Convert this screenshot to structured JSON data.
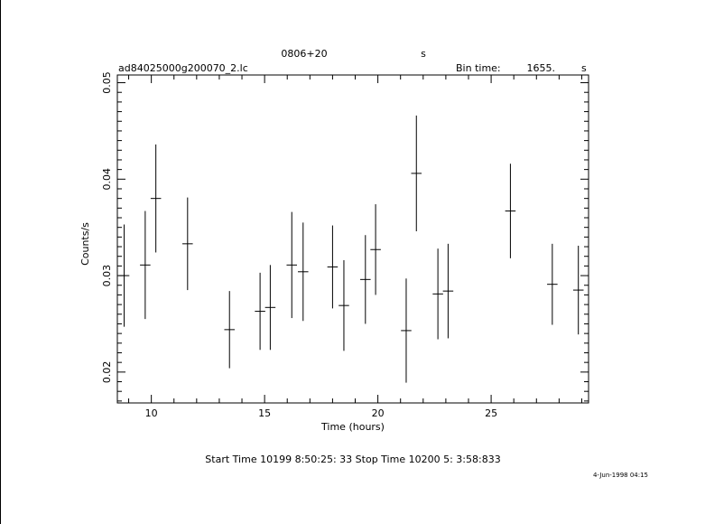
{
  "header": {
    "source": "0806+20",
    "unit_top": "s",
    "file": "ad84025000g200070_2.lc",
    "bin_label": "Bin time:",
    "bin_value": "1655.",
    "bin_unit": "s"
  },
  "footer": {
    "start_stop": "Start Time 10199  8:50:25: 33    Stop Time 10200  5: 3:58:833",
    "date": "4-Jun-1998 04:15"
  },
  "chart_data": {
    "type": "scatter",
    "title": "0806+20",
    "xlabel": "Time (hours)",
    "ylabel": "Counts/s",
    "xlim": [
      8.5,
      29.3
    ],
    "ylim": [
      0.0168,
      0.0508
    ],
    "x_ticks": [
      10,
      15,
      20,
      25
    ],
    "y_ticks": [
      0.02,
      0.03,
      0.04,
      0.05
    ],
    "y_tick_labels": [
      "0.02",
      "0.03",
      "0.04",
      "0.05"
    ],
    "grid": false,
    "points": [
      {
        "x": 8.8,
        "y": 0.03,
        "yerr": 0.0053,
        "xerr": 0.23
      },
      {
        "x": 9.73,
        "y": 0.0311,
        "yerr": 0.0056,
        "xerr": 0.23
      },
      {
        "x": 10.2,
        "y": 0.038,
        "yerr": 0.0056,
        "xerr": 0.23
      },
      {
        "x": 11.6,
        "y": 0.0333,
        "yerr": 0.0048,
        "xerr": 0.23
      },
      {
        "x": 13.45,
        "y": 0.0244,
        "yerr": 0.004,
        "xerr": 0.23
      },
      {
        "x": 14.8,
        "y": 0.0263,
        "yerr": 0.004,
        "xerr": 0.23
      },
      {
        "x": 15.25,
        "y": 0.0267,
        "yerr": 0.0044,
        "xerr": 0.23
      },
      {
        "x": 16.2,
        "y": 0.0311,
        "yerr": 0.0055,
        "xerr": 0.23
      },
      {
        "x": 16.7,
        "y": 0.0304,
        "yerr": 0.0051,
        "xerr": 0.23
      },
      {
        "x": 18.0,
        "y": 0.0309,
        "yerr": 0.0043,
        "xerr": 0.23
      },
      {
        "x": 18.5,
        "y": 0.0269,
        "yerr": 0.0047,
        "xerr": 0.23
      },
      {
        "x": 19.45,
        "y": 0.0296,
        "yerr": 0.0046,
        "xerr": 0.23
      },
      {
        "x": 19.9,
        "y": 0.0327,
        "yerr": 0.0047,
        "xerr": 0.23
      },
      {
        "x": 21.25,
        "y": 0.0243,
        "yerr": 0.0054,
        "xerr": 0.23
      },
      {
        "x": 21.7,
        "y": 0.0406,
        "yerr": 0.006,
        "xerr": 0.23
      },
      {
        "x": 22.65,
        "y": 0.0281,
        "yerr": 0.0047,
        "xerr": 0.23
      },
      {
        "x": 23.1,
        "y": 0.0284,
        "yerr": 0.0049,
        "xerr": 0.23
      },
      {
        "x": 25.85,
        "y": 0.0367,
        "yerr": 0.0049,
        "xerr": 0.23
      },
      {
        "x": 27.7,
        "y": 0.0291,
        "yerr": 0.0042,
        "xerr": 0.23
      },
      {
        "x": 28.85,
        "y": 0.0285,
        "yerr": 0.0046,
        "xerr": 0.23
      }
    ]
  }
}
